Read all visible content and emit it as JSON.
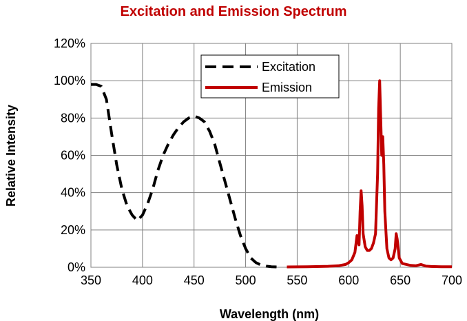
{
  "chart_data": {
    "type": "line",
    "title": "Excitation and Emission Spectrum",
    "xlabel": "Wavelength (nm)",
    "ylabel": "Relative Intensity",
    "xlim": [
      350,
      700
    ],
    "ylim": [
      0,
      120
    ],
    "x_ticks": [
      "350",
      "400",
      "450",
      "500",
      "550",
      "600",
      "650",
      "700"
    ],
    "y_ticks": [
      "0%",
      "20%",
      "40%",
      "60%",
      "80%",
      "100%",
      "120%"
    ],
    "grid": true,
    "legend_position": "top-center",
    "series": [
      {
        "name": "Excitation",
        "color": "#000000",
        "style": "dashed",
        "points": [
          [
            350,
            98
          ],
          [
            355,
            98
          ],
          [
            360,
            97
          ],
          [
            365,
            90
          ],
          [
            370,
            72
          ],
          [
            375,
            55
          ],
          [
            380,
            42
          ],
          [
            385,
            33
          ],
          [
            390,
            28
          ],
          [
            395,
            25
          ],
          [
            400,
            28
          ],
          [
            405,
            34
          ],
          [
            410,
            42
          ],
          [
            415,
            52
          ],
          [
            420,
            60
          ],
          [
            425,
            66
          ],
          [
            430,
            71
          ],
          [
            435,
            75
          ],
          [
            440,
            78
          ],
          [
            445,
            80
          ],
          [
            450,
            81
          ],
          [
            455,
            80
          ],
          [
            460,
            78
          ],
          [
            465,
            73
          ],
          [
            470,
            66
          ],
          [
            475,
            56
          ],
          [
            480,
            46
          ],
          [
            485,
            36
          ],
          [
            490,
            26
          ],
          [
            495,
            17
          ],
          [
            500,
            10
          ],
          [
            505,
            5
          ],
          [
            510,
            2.5
          ],
          [
            515,
            1.2
          ],
          [
            520,
            0.6
          ],
          [
            525,
            0.3
          ],
          [
            530,
            0.2
          ]
        ]
      },
      {
        "name": "Emission",
        "color": "#c00000",
        "style": "solid",
        "points": [
          [
            540,
            0.2
          ],
          [
            560,
            0.3
          ],
          [
            580,
            0.5
          ],
          [
            590,
            0.8
          ],
          [
            597,
            1.5
          ],
          [
            600,
            2.5
          ],
          [
            603,
            4
          ],
          [
            606,
            8
          ],
          [
            608,
            17
          ],
          [
            609,
            14
          ],
          [
            610,
            12
          ],
          [
            611,
            30
          ],
          [
            612,
            41
          ],
          [
            613,
            33
          ],
          [
            614,
            18
          ],
          [
            616,
            11
          ],
          [
            618,
            9
          ],
          [
            620,
            9
          ],
          [
            622,
            10
          ],
          [
            624,
            13
          ],
          [
            626,
            18
          ],
          [
            628,
            50
          ],
          [
            629,
            85
          ],
          [
            630,
            100
          ],
          [
            631,
            80
          ],
          [
            632,
            60
          ],
          [
            633,
            70
          ],
          [
            634,
            55
          ],
          [
            635,
            30
          ],
          [
            637,
            10
          ],
          [
            639,
            5
          ],
          [
            641,
            4
          ],
          [
            643,
            5
          ],
          [
            645,
            10
          ],
          [
            646,
            18
          ],
          [
            647,
            15
          ],
          [
            649,
            5
          ],
          [
            652,
            2
          ],
          [
            660,
            1
          ],
          [
            665,
            0.8
          ],
          [
            670,
            1.5
          ],
          [
            675,
            0.6
          ],
          [
            680,
            0.4
          ],
          [
            690,
            0.3
          ],
          [
            700,
            0.3
          ]
        ]
      }
    ]
  }
}
